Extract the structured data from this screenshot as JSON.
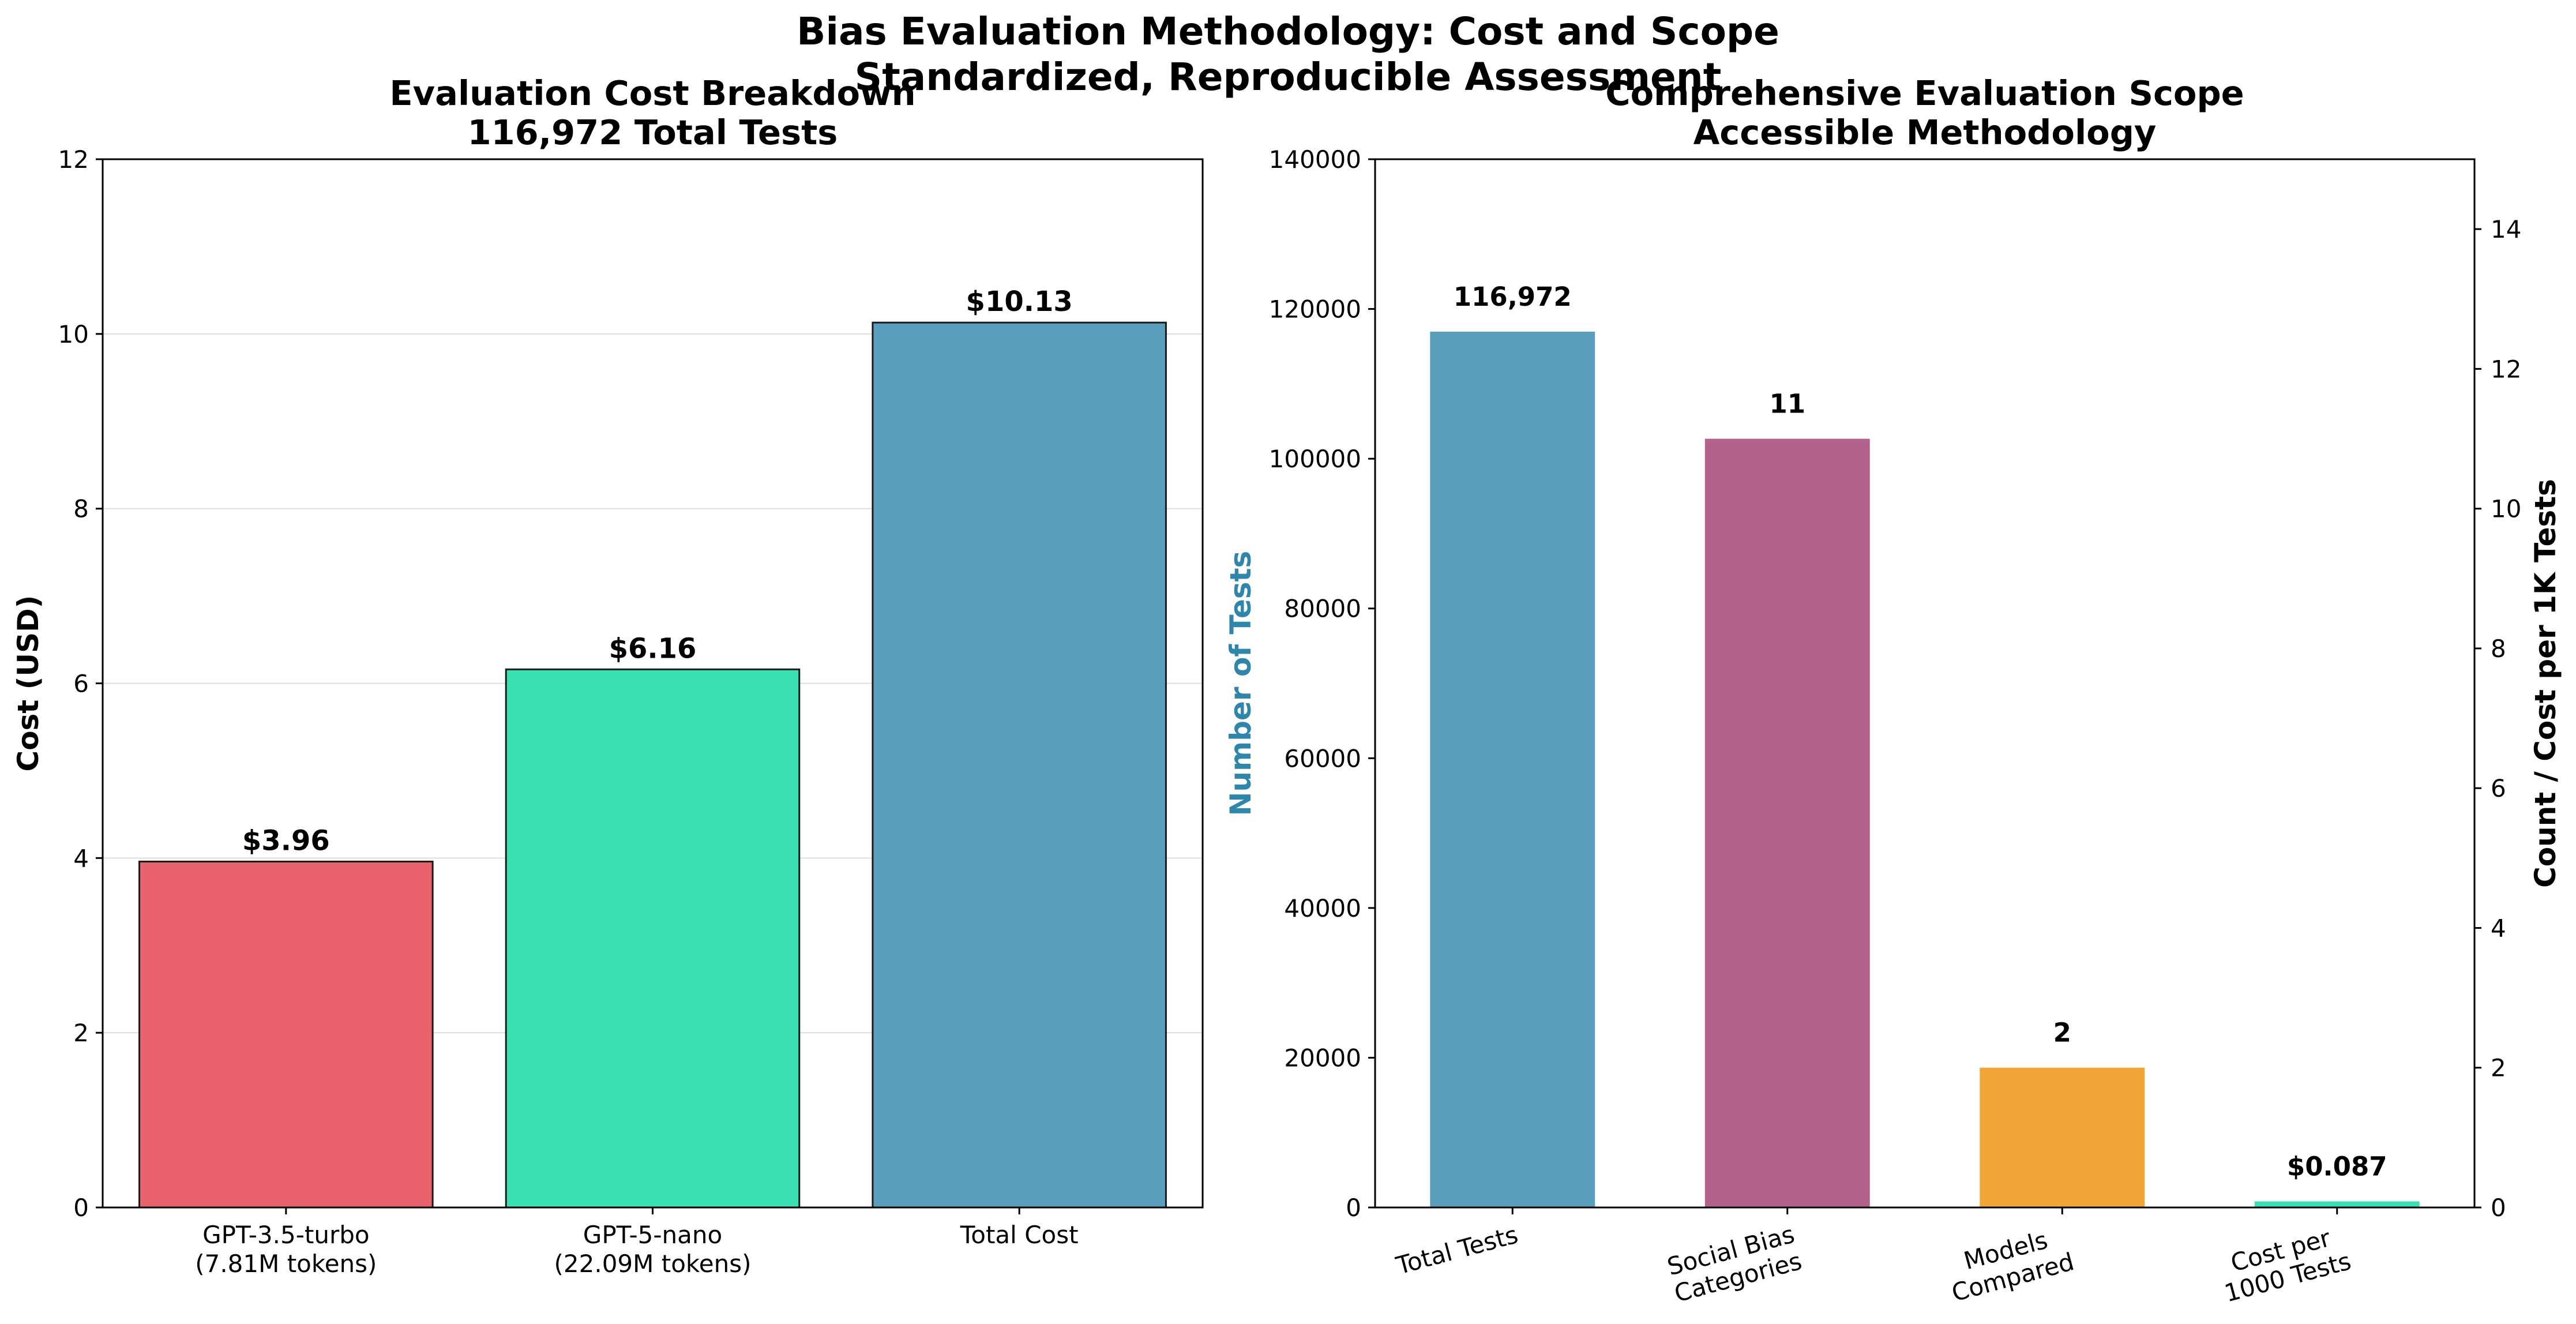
{
  "suptitle": [
    "Bias Evaluation Methodology: Cost and Scope",
    "Standardized, Reproducible Assessment"
  ],
  "chart_data": [
    {
      "type": "bar",
      "title": [
        "Evaluation Cost Breakdown",
        "116,972 Total Tests"
      ],
      "ylabel": "Cost (USD)",
      "categories": [
        [
          "GPT-3.5-turbo",
          "(7.81M tokens)"
        ],
        [
          "GPT-5-nano",
          "(22.09M tokens)"
        ],
        [
          "Total Cost"
        ]
      ],
      "values": [
        3.96,
        6.16,
        10.13
      ],
      "value_labels": [
        "$3.96",
        "$6.16",
        "$10.13"
      ],
      "colors": [
        "#e9636c",
        "#3adfb4",
        "#5a9ebe"
      ],
      "bar_edge": "#1a1a1a",
      "ylim": [
        0,
        12
      ],
      "yticks": [
        0,
        2,
        4,
        6,
        8,
        10,
        12
      ],
      "grid": true
    },
    {
      "type": "bar",
      "title": [
        "Comprehensive Evaluation Scope",
        "Accessible Methodology"
      ],
      "ylabel": "Number of Tests",
      "ylabel_color": "#2e86ab",
      "y2label": "Count / Cost per 1K Tests",
      "categories": [
        [
          "Total Tests"
        ],
        [
          "Social Bias",
          "Categories"
        ],
        [
          "Models",
          "Compared"
        ],
        [
          "Cost per",
          "1000 Tests"
        ]
      ],
      "series": [
        {
          "axis": "left",
          "values": [
            116972,
            null,
            null,
            null
          ]
        },
        {
          "axis": "right",
          "values": [
            null,
            11,
            2,
            0.087
          ]
        }
      ],
      "value_labels": [
        "116,972",
        "11",
        "2",
        "$0.087"
      ],
      "colors": [
        "#5a9ebe",
        "#b3638b",
        "#f0a535",
        "#3adfb4"
      ],
      "ylim": [
        0,
        140000
      ],
      "yticks": [
        0,
        20000,
        40000,
        60000,
        80000,
        100000,
        120000,
        140000
      ],
      "y2lim": [
        0,
        15
      ],
      "y2ticks": [
        0,
        2,
        4,
        6,
        8,
        10,
        12,
        14
      ],
      "grid": false
    }
  ]
}
